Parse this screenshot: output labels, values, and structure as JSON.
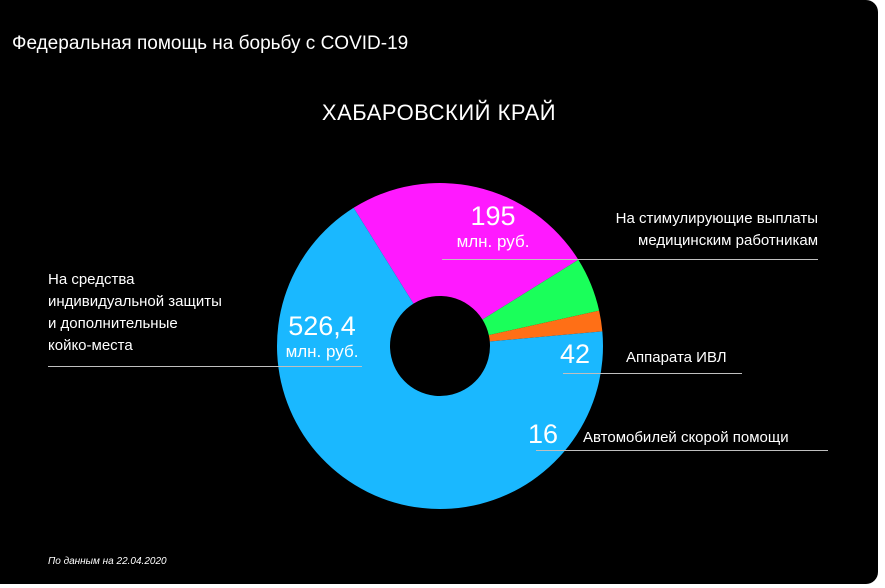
{
  "header": {
    "title": "Федеральная помощь на борьбу с COVID-19"
  },
  "chart_data": {
    "type": "pie",
    "title": "ХАБАРОВСКИЙ КРАЙ",
    "unit": "млн. руб.",
    "slices": [
      {
        "label_lines": [
          "На стимулирующие выплаты",
          "медицинским работникам"
        ],
        "value_text": "195",
        "value": 195,
        "color": "#ff19ff"
      },
      {
        "label_lines": [
          "Аппарата ИВЛ"
        ],
        "value_text": "42",
        "value": 42,
        "color": "#1aff5a"
      },
      {
        "label_lines": [
          "Автомобилей скорой помощи"
        ],
        "value_text": "16",
        "value": 16,
        "color": "#ff6f16"
      },
      {
        "label_lines": [
          "На средства",
          "индивидуальной защиты",
          "и дополнительные",
          "койко-места"
        ],
        "value_text": "526,4",
        "value": 526.4,
        "color": "#1ab8ff"
      }
    ]
  },
  "footnote": "По данным на 22.04.2020"
}
